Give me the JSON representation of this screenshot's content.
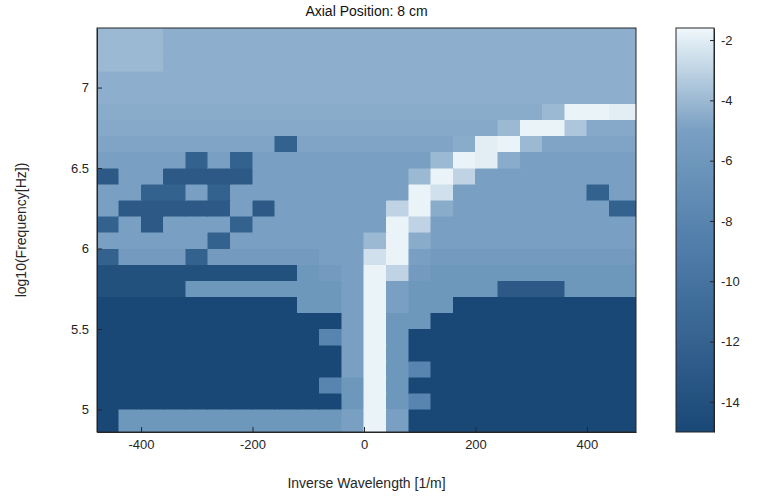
{
  "chart_data": {
    "type": "heatmap",
    "title": "Axial Position: 8 cm",
    "x_label": "Inverse Wavelength [1/m]",
    "y_label": "log10(Frequency[Hz])",
    "xlim": [
      -479,
      488
    ],
    "ylim": [
      4.86,
      7.37
    ],
    "xticks": [
      -400,
      -200,
      0,
      200,
      400
    ],
    "yticks": [
      5,
      5.5,
      6,
      6.5,
      7
    ],
    "x_edges": [
      -479,
      -440,
      -400,
      -360,
      -320,
      -280,
      -240,
      -200,
      -160,
      -120,
      -80,
      -40,
      0,
      40,
      80,
      120,
      160,
      200,
      240,
      280,
      320,
      360,
      400,
      440,
      488
    ],
    "y_edges": [
      4.86,
      5.0,
      5.1,
      5.2,
      5.3,
      5.4,
      5.5,
      5.6,
      5.7,
      5.8,
      5.9,
      6.0,
      6.1,
      6.2,
      6.3,
      6.4,
      6.5,
      6.6,
      6.7,
      6.8,
      6.9,
      7.0,
      7.1,
      7.2,
      7.37
    ],
    "cells": [
      [
        -15,
        -6,
        -6,
        -6,
        -6,
        -6,
        -6,
        -6,
        -6,
        -6,
        -6,
        -5,
        -1.8,
        -5,
        -15,
        -15,
        -15,
        -15,
        -15,
        -15,
        -15,
        -15,
        -15,
        -15
      ],
      [
        -15,
        -15,
        -15,
        -15,
        -15,
        -15,
        -15,
        -15,
        -15,
        -15,
        -15,
        -6,
        -1.8,
        -6,
        -8,
        -15,
        -15,
        -15,
        -15,
        -15,
        -15,
        -15,
        -15,
        -15
      ],
      [
        -15,
        -15,
        -15,
        -15,
        -15,
        -15,
        -15,
        -15,
        -15,
        -15,
        -8,
        -6,
        -1.8,
        -6,
        -15,
        -15,
        -15,
        -15,
        -15,
        -15,
        -15,
        -15,
        -15,
        -15
      ],
      [
        -15,
        -15,
        -15,
        -15,
        -15,
        -15,
        -15,
        -15,
        -15,
        -15,
        -15,
        -5,
        -1.8,
        -6,
        -8,
        -15,
        -15,
        -15,
        -15,
        -15,
        -15,
        -15,
        -15,
        -15
      ],
      [
        -15,
        -15,
        -15,
        -15,
        -15,
        -15,
        -15,
        -15,
        -15,
        -15,
        -15,
        -5,
        -1.8,
        -6,
        -15,
        -15,
        -15,
        -15,
        -15,
        -15,
        -15,
        -15,
        -15,
        -15
      ],
      [
        -15,
        -15,
        -15,
        -15,
        -15,
        -15,
        -15,
        -15,
        -15,
        -15,
        -8,
        -5,
        -1.8,
        -6,
        -15,
        -15,
        -15,
        -15,
        -15,
        -15,
        -15,
        -15,
        -15,
        -15
      ],
      [
        -15,
        -15,
        -15,
        -15,
        -15,
        -15,
        -15,
        -15,
        -15,
        -15,
        -15,
        -5,
        -1.8,
        -6,
        -6,
        -15,
        -15,
        -15,
        -15,
        -15,
        -15,
        -15,
        -15,
        -15
      ],
      [
        -15,
        -15,
        -15,
        -15,
        -15,
        -15,
        -15,
        -15,
        -15,
        -6,
        -6,
        -5,
        -1.8,
        -5,
        -6,
        -6,
        -15,
        -15,
        -15,
        -15,
        -15,
        -15,
        -15,
        -15
      ],
      [
        -14,
        -14,
        -14,
        -14,
        -6,
        -6,
        -6,
        -6,
        -6,
        -6,
        -6,
        -5,
        -1.8,
        -5,
        -6,
        -6,
        -6,
        -6,
        -13,
        -13,
        -13,
        -6,
        -6,
        -6
      ],
      [
        -14,
        -14,
        -14,
        -14,
        -14,
        -14,
        -14,
        -14,
        -14,
        -6,
        -5.5,
        -5,
        -1.8,
        -3,
        -5.5,
        -6,
        -6,
        -6,
        -6,
        -6,
        -6,
        -6,
        -6,
        -6
      ],
      [
        -12,
        -5.5,
        -5.5,
        -5.5,
        -12,
        -5.5,
        -5.5,
        -5.5,
        -5.5,
        -5.5,
        -5,
        -5,
        -2.5,
        -1.8,
        -5,
        -5.5,
        -5.5,
        -5.5,
        -5.5,
        -5.5,
        -5.5,
        -5.5,
        -5.5,
        -5.5
      ],
      [
        -5,
        -5,
        -5,
        -5,
        -5,
        -12,
        -5,
        -5,
        -5,
        -5,
        -5,
        -5,
        -4,
        -1.8,
        -4.5,
        -5,
        -5,
        -5,
        -5,
        -5,
        -5,
        -5,
        -5,
        -5
      ],
      [
        -12,
        -5,
        -13,
        -5,
        -5,
        -5,
        -12,
        -5,
        -5,
        -5,
        -5,
        -5,
        -5,
        -1.8,
        -3,
        -5,
        -5,
        -5,
        -5,
        -5,
        -5,
        -5,
        -5,
        -5
      ],
      [
        -5,
        -13,
        -13,
        -13,
        -13,
        -13,
        -5,
        -13,
        -5,
        -5,
        -5,
        -5,
        -5,
        -3,
        -1.8,
        -4.5,
        -5,
        -5,
        -5,
        -5,
        -5,
        -5,
        -5,
        -12
      ],
      [
        -5,
        -5,
        -12,
        -12,
        -5,
        -12,
        -5,
        -5,
        -5,
        -5,
        -5,
        -5,
        -5,
        -5,
        -1.8,
        -2.5,
        -5,
        -5,
        -5,
        -5,
        -5,
        -5,
        -12,
        -5
      ],
      [
        -13,
        -5,
        -5,
        -13,
        -13,
        -13,
        -13,
        -5,
        -5,
        -5,
        -5,
        -5,
        -5,
        -5,
        -4,
        -1.8,
        -3,
        -5,
        -5,
        -5,
        -5,
        -5,
        -5,
        -5
      ],
      [
        -5,
        -5,
        -5,
        -5,
        -12,
        -5,
        -12,
        -5,
        -5,
        -5,
        -5,
        -5,
        -5,
        -5,
        -5,
        -4,
        -1.8,
        -2,
        -4.5,
        -5,
        -5,
        -5,
        -5,
        -5
      ],
      [
        -4.8,
        -4.8,
        -4.8,
        -4.8,
        -4.8,
        -4.8,
        -4.8,
        -4.8,
        -12,
        -4.8,
        -4.8,
        -4.8,
        -4.8,
        -4.8,
        -4.8,
        -4.8,
        -4.5,
        -2,
        -1.8,
        -4,
        -4.8,
        -4.8,
        -4.8,
        -4.8
      ],
      [
        -4.6,
        -4.6,
        -4.6,
        -4.6,
        -4.6,
        -4.6,
        -4.6,
        -4.6,
        -4.6,
        -4.6,
        -4.6,
        -4.6,
        -4.6,
        -4.6,
        -4.6,
        -4.6,
        -4.6,
        -4.6,
        -4,
        -1.8,
        -1.8,
        -3.5,
        -4.6,
        -4.6
      ],
      [
        -4.5,
        -4.5,
        -4.5,
        -4.5,
        -4.5,
        -4.5,
        -4.5,
        -4.5,
        -4.5,
        -4.5,
        -4.5,
        -4.5,
        -4.5,
        -4.5,
        -4.5,
        -4.5,
        -4.5,
        -4.5,
        -4.5,
        -4.5,
        -4,
        -1.8,
        -1.8,
        -2
      ],
      [
        -4.4,
        -4.4,
        -4.4,
        -4.4,
        -4.4,
        -4.4,
        -4.4,
        -4.4,
        -4.4,
        -4.4,
        -4.4,
        -4.4,
        -4.4,
        -4.4,
        -4.4,
        -4.4,
        -4.4,
        -4.4,
        -4.4,
        -4.4,
        -4.4,
        -4.4,
        -4.4,
        -4.4
      ],
      [
        -4.4,
        -4.4,
        -4.4,
        -4.4,
        -4.4,
        -4.4,
        -4.4,
        -4.4,
        -4.4,
        -4.4,
        -4.4,
        -4.4,
        -4.4,
        -4.4,
        -4.4,
        -4.4,
        -4.4,
        -4.4,
        -4.4,
        -4.4,
        -4.4,
        -4.4,
        -4.4,
        -4.4
      ],
      [
        -4,
        -4,
        -4,
        -4.4,
        -4.4,
        -4.4,
        -4.4,
        -4.4,
        -4.4,
        -4.4,
        -4.4,
        -4.4,
        -4.4,
        -4.4,
        -4.4,
        -4.4,
        -4.4,
        -4.4,
        -4.4,
        -4.4,
        -4.4,
        -4.4,
        -4.4,
        -4.4
      ],
      [
        -4,
        -4,
        -4,
        -4.4,
        -4.4,
        -4.4,
        -4.4,
        -4.4,
        -4.4,
        -4.4,
        -4.4,
        -4.4,
        -4.4,
        -4.4,
        -4.4,
        -4.4,
        -4.4,
        -4.4,
        -4.4,
        -4.4,
        -4.4,
        -4.4,
        -4.4,
        -4.4
      ]
    ],
    "color_range": [
      -15,
      -1.6
    ],
    "color_ticks": [
      -2,
      -4,
      -6,
      -8,
      -10,
      -12,
      -14
    ]
  }
}
